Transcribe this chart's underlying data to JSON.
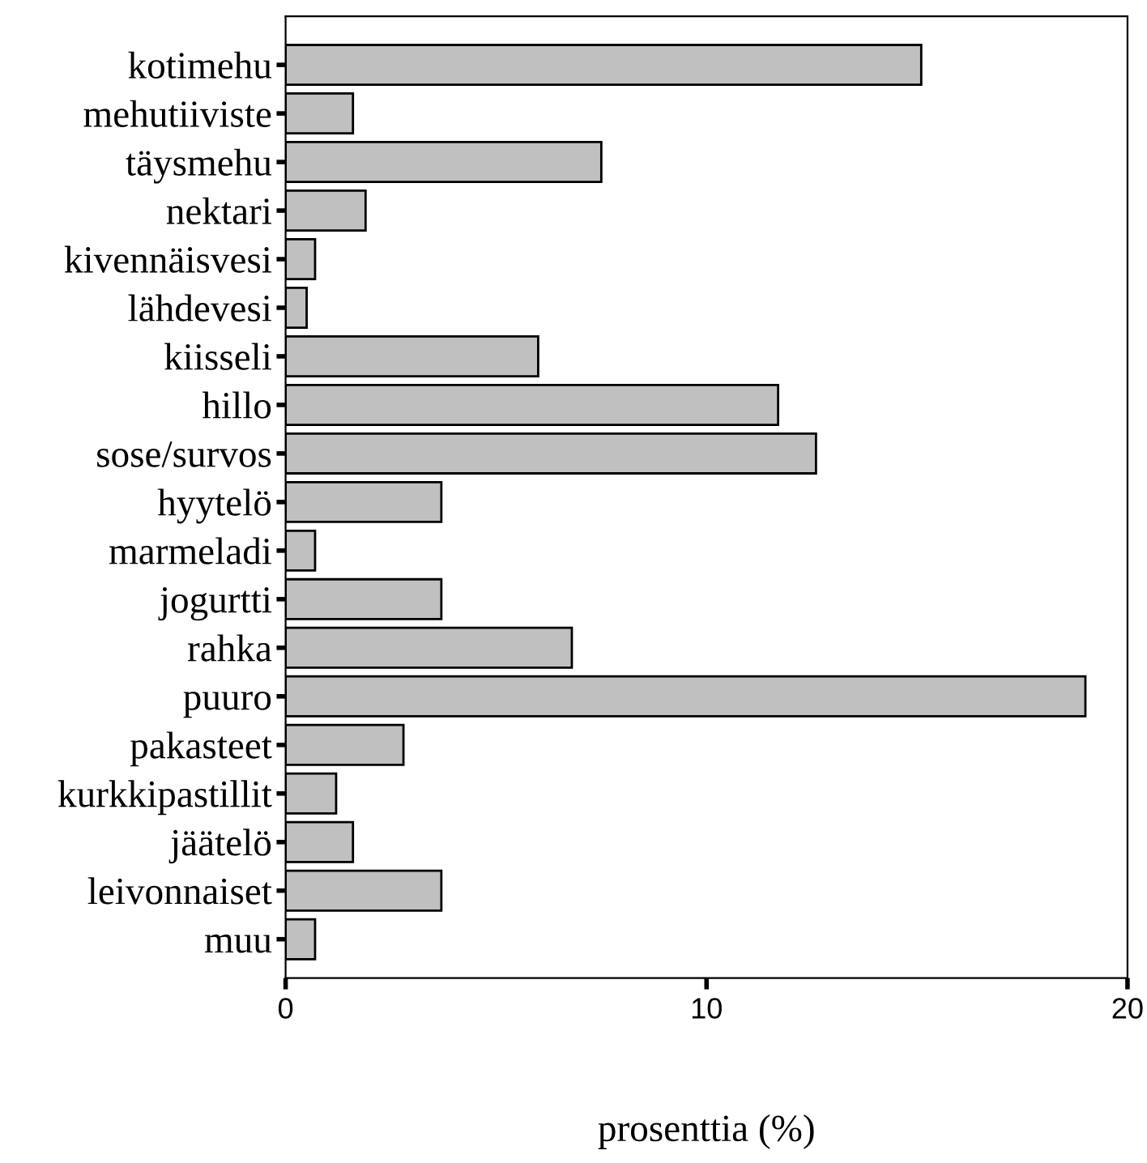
{
  "chart_data": {
    "type": "bar",
    "orientation": "horizontal",
    "xlabel": "prosenttia (%)",
    "categories": [
      "kotimehu",
      "mehutiiviste",
      "täysmehu",
      "nektari",
      "kivennäisvesi",
      "lähdevesi",
      "kiisseli",
      "hillo",
      "sose/survos",
      "hyytelö",
      "marmeladi",
      "jogurtti",
      "rahka",
      "puuro",
      "pakasteet",
      "kurkkipastillit",
      "jäätelö",
      "leivonnaiset",
      "muu"
    ],
    "values": [
      15.1,
      1.6,
      7.5,
      1.9,
      0.7,
      0.5,
      6.0,
      11.7,
      12.6,
      3.7,
      0.7,
      3.7,
      6.8,
      19.0,
      2.8,
      1.2,
      1.6,
      3.7,
      0.7
    ],
    "color": "#c0c0c0",
    "xlim": [
      0,
      20
    ],
    "xticks": [
      0,
      10,
      20
    ],
    "grid": false,
    "legend": false
  }
}
